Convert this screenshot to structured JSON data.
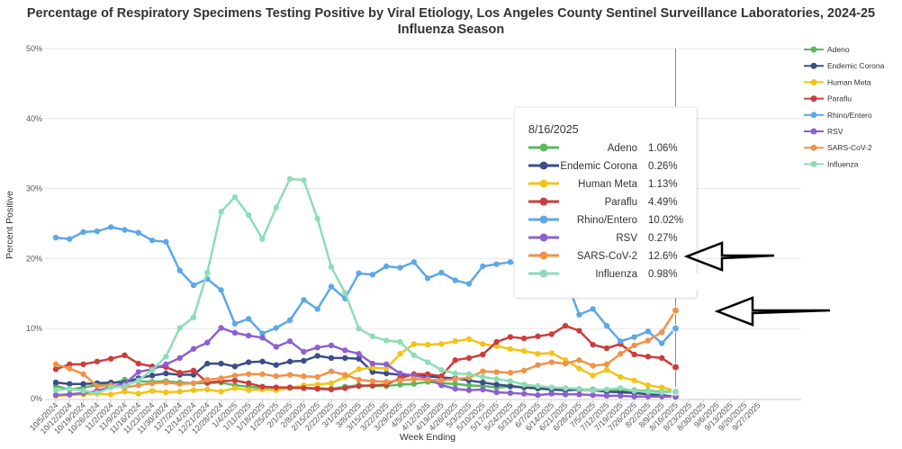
{
  "chart_data": {
    "type": "line",
    "title": "Percentage of Respiratory Specimens Testing Positive by Viral Etiology, Los Angeles County Sentinel Surveillance Laboratories, 2024-25 Influenza Season",
    "title_line1": "Percentage of Respiratory Specimens Testing Positive by Viral Etiology, Los Angeles County Sentinel Surveillance Laboratories, 2024-25",
    "title_line2": "Influenza Season",
    "xlabel": "Week Ending",
    "ylabel": "Percent Positive",
    "ylim": [
      0,
      50
    ],
    "y_ticks": [
      "0%",
      "10%",
      "20%",
      "30%",
      "40%",
      "50%"
    ],
    "grid": "horizontal",
    "legend_position": "right",
    "x": [
      "10/5/2024",
      "10/12/2024",
      "10/19/2024",
      "10/26/2024",
      "11/2/2024",
      "11/9/2024",
      "11/16/2024",
      "11/23/2024",
      "11/30/2024",
      "12/7/2024",
      "12/14/2024",
      "12/21/2024",
      "12/28/2024",
      "1/4/2025",
      "1/11/2025",
      "1/18/2025",
      "1/25/2025",
      "2/1/2025",
      "2/8/2025",
      "2/15/2025",
      "2/22/2025",
      "3/1/2025",
      "3/8/2025",
      "3/15/2025",
      "3/22/2025",
      "3/29/2025",
      "4/5/2025",
      "4/12/2025",
      "4/19/2025",
      "4/26/2025",
      "5/3/2025",
      "5/10/2025",
      "5/17/2025",
      "5/24/2025",
      "5/31/2025",
      "6/7/2025",
      "6/14/2025",
      "6/21/2025",
      "6/28/2025",
      "7/5/2025",
      "7/12/2025",
      "7/19/2025",
      "7/26/2025",
      "8/2/2025",
      "8/9/2025",
      "8/16/2025",
      "8/23/2025",
      "8/30/2025",
      "9/6/2025",
      "9/13/2025",
      "9/20/2025",
      "9/27/2025"
    ],
    "series": [
      {
        "name": "Adeno",
        "color": "#5cb85c",
        "values": [
          1.8,
          1.3,
          1.6,
          1.9,
          2.1,
          2.7,
          2.5,
          2.4,
          2.5,
          2.3,
          2.2,
          2.2,
          2.3,
          1.9,
          1.7,
          1.5,
          1.6,
          1.5,
          1.5,
          1.5,
          1.4,
          1.7,
          1.9,
          1.8,
          1.8,
          2.0,
          2.1,
          2.4,
          2.2,
          2.1,
          1.9,
          1.8,
          1.6,
          1.7,
          1.6,
          1.4,
          1.3,
          1.2,
          1.3,
          1.3,
          1.2,
          1.1,
          1.2,
          1.1,
          1.0,
          1.06,
          null,
          null,
          null,
          null,
          null,
          null
        ]
      },
      {
        "name": "Endemic Corona",
        "color": "#3b4e87",
        "values": [
          2.3,
          2.1,
          2.1,
          2.2,
          2.3,
          2.3,
          2.9,
          3.3,
          3.6,
          3.4,
          3.4,
          5.0,
          5.0,
          4.6,
          5.2,
          5.3,
          4.8,
          5.3,
          5.4,
          6.1,
          5.8,
          5.8,
          5.7,
          3.8,
          3.6,
          3.4,
          3.3,
          3.2,
          3.0,
          2.9,
          2.6,
          2.3,
          2.0,
          1.8,
          1.6,
          1.5,
          1.3,
          1.2,
          1.3,
          1.2,
          1.0,
          0.9,
          0.8,
          0.6,
          0.5,
          0.26,
          null,
          null,
          null,
          null,
          null,
          null
        ]
      },
      {
        "name": "Human Meta",
        "color": "#f0c419",
        "values": [
          0.4,
          0.5,
          0.6,
          0.7,
          0.6,
          1.0,
          0.7,
          1.1,
          0.9,
          1.0,
          1.2,
          1.3,
          1.0,
          1.5,
          1.2,
          1.3,
          1.2,
          1.5,
          1.9,
          2.0,
          2.2,
          3.1,
          4.2,
          4.4,
          4.3,
          6.4,
          7.8,
          7.7,
          7.8,
          8.2,
          8.5,
          7.8,
          7.5,
          7.1,
          6.8,
          6.4,
          6.5,
          5.5,
          4.3,
          3.3,
          4.1,
          3.1,
          2.6,
          1.9,
          1.6,
          1.13,
          null,
          null,
          null,
          null,
          null,
          null
        ]
      },
      {
        "name": "Paraflu",
        "color": "#cc3d3d",
        "values": [
          4.2,
          4.9,
          4.9,
          5.3,
          5.7,
          6.2,
          5.0,
          4.6,
          4.5,
          3.7,
          4.0,
          2.3,
          2.5,
          2.6,
          2.2,
          1.7,
          1.6,
          1.6,
          1.5,
          1.4,
          1.3,
          1.5,
          1.8,
          1.9,
          2.0,
          2.9,
          3.5,
          3.5,
          3.2,
          5.5,
          5.8,
          6.3,
          8.1,
          8.8,
          8.6,
          8.9,
          9.2,
          10.4,
          9.7,
          7.7,
          7.2,
          7.8,
          6.3,
          6.0,
          5.8,
          4.49,
          null,
          null,
          null,
          null,
          null,
          null
        ]
      },
      {
        "name": "Rhino/Entero",
        "color": "#5ea7e6",
        "values": [
          23.0,
          22.8,
          23.8,
          23.9,
          24.5,
          24.1,
          23.7,
          22.6,
          22.4,
          18.3,
          16.2,
          17.1,
          15.5,
          10.7,
          11.4,
          9.3,
          10.1,
          11.2,
          14.1,
          12.8,
          16.0,
          14.3,
          17.9,
          17.7,
          18.9,
          18.7,
          19.5,
          17.2,
          18.0,
          16.9,
          16.4,
          18.9,
          19.2,
          19.5,
          18.9,
          18.4,
          17.9,
          17.2,
          12.0,
          12.8,
          10.4,
          8.2,
          8.8,
          9.6,
          7.9,
          10.02,
          null,
          null,
          null,
          null,
          null,
          null
        ]
      },
      {
        "name": "RSV",
        "color": "#8e5fd0",
        "values": [
          0.5,
          0.6,
          0.8,
          1.1,
          1.7,
          2.1,
          3.8,
          4.2,
          4.9,
          5.8,
          7.1,
          8.0,
          10.1,
          9.4,
          9.0,
          8.7,
          7.4,
          8.2,
          6.7,
          7.3,
          7.6,
          6.9,
          6.4,
          5.0,
          4.9,
          3.6,
          3.3,
          2.9,
          1.9,
          1.4,
          1.2,
          1.3,
          0.9,
          0.8,
          0.7,
          0.5,
          0.7,
          0.6,
          0.6,
          0.5,
          0.4,
          0.4,
          0.3,
          0.3,
          0.3,
          0.27,
          null,
          null,
          null,
          null,
          null,
          null
        ]
      },
      {
        "name": "SARS-CoV-2",
        "color": "#f0924a",
        "values": [
          4.9,
          4.3,
          3.5,
          1.8,
          1.9,
          1.6,
          1.9,
          2.2,
          2.3,
          2.1,
          2.2,
          2.7,
          2.9,
          3.3,
          3.5,
          3.5,
          3.2,
          3.4,
          3.2,
          3.1,
          3.9,
          3.4,
          2.7,
          2.5,
          2.4,
          2.6,
          2.8,
          2.7,
          2.6,
          2.8,
          3.0,
          3.9,
          3.8,
          3.7,
          4.0,
          4.8,
          5.2,
          5.0,
          5.5,
          4.7,
          4.9,
          6.4,
          7.6,
          8.3,
          9.5,
          12.6,
          null,
          null,
          null,
          null,
          null,
          null
        ]
      },
      {
        "name": "Influenza",
        "color": "#8fdcb6",
        "values": [
          1.2,
          1.4,
          1.1,
          0.8,
          1.6,
          1.8,
          2.6,
          4.1,
          6.0,
          10.1,
          11.6,
          18.0,
          26.7,
          28.8,
          26.2,
          22.8,
          27.3,
          31.4,
          31.2,
          25.7,
          18.8,
          15.1,
          10.0,
          8.9,
          8.3,
          8.1,
          6.2,
          5.2,
          4.1,
          3.6,
          3.5,
          3.1,
          2.8,
          2.5,
          2.0,
          1.8,
          1.6,
          1.5,
          1.4,
          1.2,
          1.3,
          1.5,
          1.1,
          1.0,
          0.9,
          0.98,
          null,
          null,
          null,
          null,
          null,
          null
        ]
      }
    ]
  },
  "tooltip": {
    "date": "8/16/2025",
    "rows": [
      {
        "name": "Adeno",
        "value": "1.06%"
      },
      {
        "name": "Endemic Corona",
        "value": "0.26%"
      },
      {
        "name": "Human Meta",
        "value": "1.13%"
      },
      {
        "name": "Paraflu",
        "value": "4.49%"
      },
      {
        "name": "Rhino/Entero",
        "value": "10.02%"
      },
      {
        "name": "RSV",
        "value": "0.27%"
      },
      {
        "name": "SARS-CoV-2",
        "value": "12.6%"
      },
      {
        "name": "Influenza",
        "value": "0.98%"
      }
    ]
  }
}
